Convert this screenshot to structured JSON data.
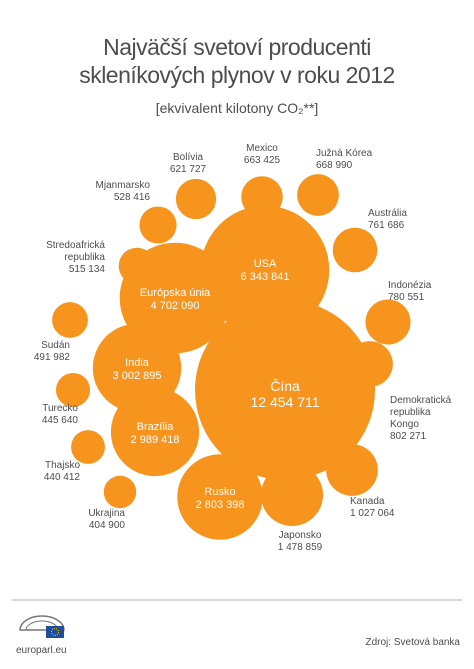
{
  "chart_data": {
    "type": "bubble",
    "title": [
      "Najväčší svetoví producenti",
      "skleníkových plynov v roku 2012"
    ],
    "subtitle": "[ekvivalent kilotony CO₂**]",
    "color": "#f7941d",
    "categories": [
      "Čína",
      "USA",
      "Európska únia",
      "India",
      "Brazília",
      "Rusko",
      "Japonsko",
      "Kanada",
      "Demokratická\nrepublika\nKongo",
      "Indonézia",
      "Austrália",
      "Južná Kórea",
      "Mexico",
      "Bolívia",
      "Mjanmarsko",
      "Stredoafrická\nrepublika",
      "Sudán",
      "Turecko",
      "Thajsko",
      "Ukrajina"
    ],
    "values": [
      12454711,
      6343841,
      4702090,
      3002895,
      2989418,
      2803398,
      1478859,
      1027064,
      802271,
      780551,
      761686,
      668990,
      663425,
      621727,
      528416,
      515134,
      491982,
      445640,
      440412,
      404900
    ],
    "value_labels": [
      "12 454 711",
      "6 343 841",
      "4 702 090",
      "3 002 895",
      "2 989 418",
      "2 803 398",
      "1 478 859",
      "1 027 064",
      "802 271",
      "780 551",
      "761 686",
      "668 990",
      "663 425",
      "621 727",
      "528 416",
      "515 134",
      "491 982",
      "445 640",
      "440 412",
      "404 900"
    ],
    "source": "Zdroj: Svetová banka",
    "site": "europarl.eu"
  }
}
